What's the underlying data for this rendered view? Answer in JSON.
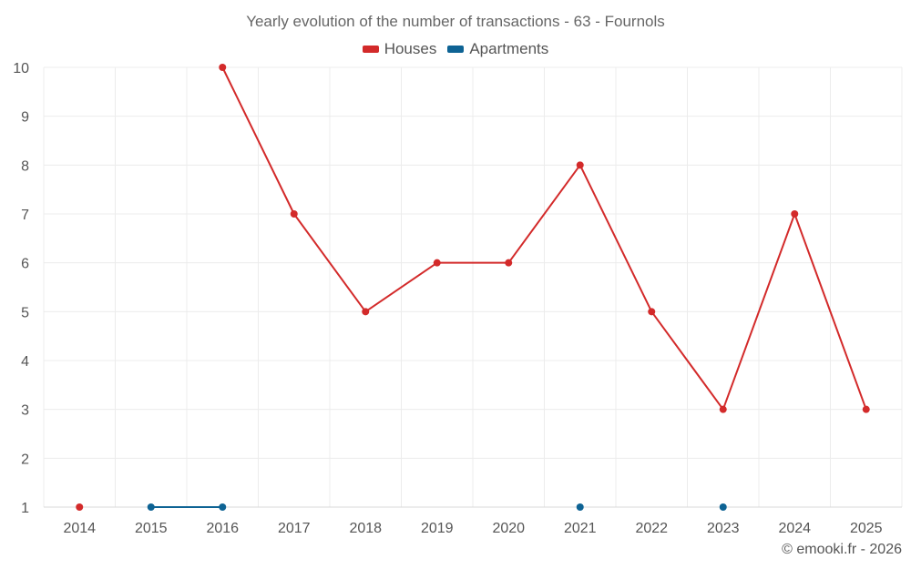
{
  "chart_data": {
    "type": "line",
    "title": "Yearly evolution of the number of transactions - 63 - Fournols",
    "categories": [
      "2014",
      "2015",
      "2016",
      "2017",
      "2018",
      "2019",
      "2020",
      "2021",
      "2022",
      "2023",
      "2024",
      "2025"
    ],
    "series": [
      {
        "name": "Houses",
        "color": "#d32a2a",
        "values": [
          1,
          null,
          10,
          7,
          5,
          6,
          6,
          8,
          5,
          3,
          7,
          3
        ]
      },
      {
        "name": "Apartments",
        "color": "#0e6394",
        "values": [
          null,
          1,
          1,
          null,
          null,
          null,
          null,
          1,
          null,
          1,
          null,
          null
        ]
      }
    ],
    "yticks": [
      1,
      2,
      3,
      4,
      5,
      6,
      7,
      8,
      9,
      10
    ],
    "ylim": [
      1,
      10
    ],
    "xlabel": "",
    "ylabel": "",
    "grid": true,
    "legend_position": "top-center"
  },
  "footer": {
    "credit": "© emooki.fr - 2026"
  }
}
